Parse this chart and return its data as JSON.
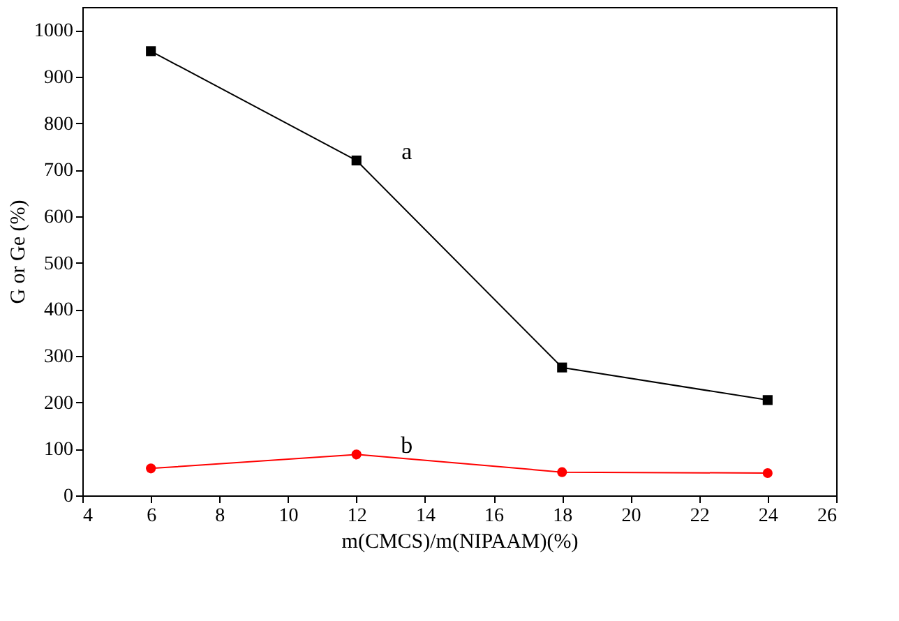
{
  "chart_data": {
    "type": "line",
    "xlabel": "m(CMCS)/m(NIPAAM)(%)",
    "ylabel": "G or Ge (%)",
    "x": [
      6,
      12,
      18,
      24
    ],
    "series": [
      {
        "name": "a",
        "color": "#000000",
        "marker": "square",
        "values": [
          955,
          720,
          275,
          205
        ]
      },
      {
        "name": "b",
        "color": "#ff0000",
        "marker": "circle",
        "values": [
          58,
          88,
          50,
          48
        ]
      }
    ],
    "xlim": [
      4,
      26
    ],
    "xticks": [
      4,
      6,
      8,
      10,
      12,
      14,
      16,
      18,
      20,
      22,
      24,
      26
    ],
    "ylim": [
      0,
      1050
    ],
    "yticks": [
      0,
      100,
      200,
      300,
      400,
      500,
      600,
      700,
      800,
      900,
      1000
    ],
    "grid": false,
    "legend": false
  }
}
